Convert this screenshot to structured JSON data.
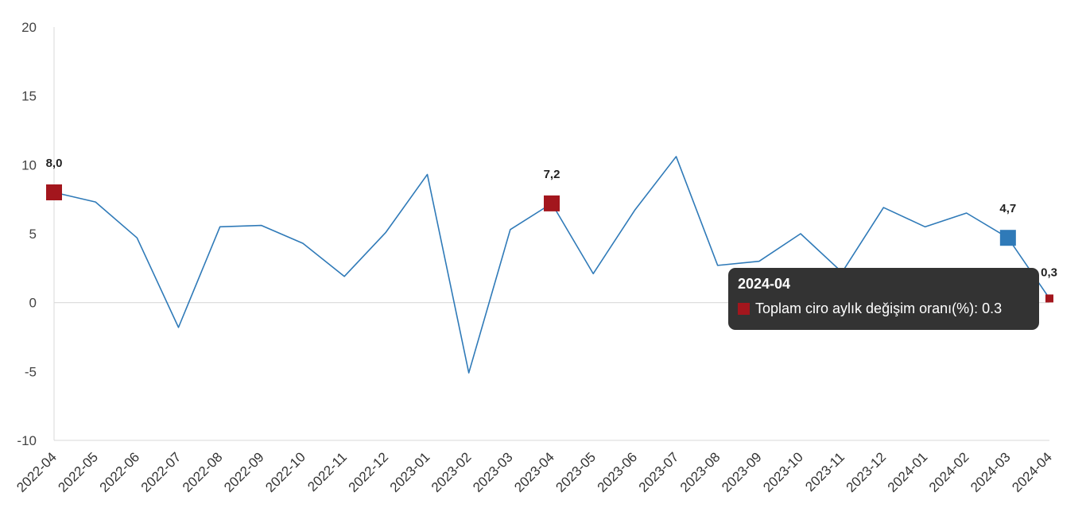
{
  "chart_data": {
    "type": "line",
    "categories": [
      "2022-04",
      "2022-05",
      "2022-06",
      "2022-07",
      "2022-08",
      "2022-09",
      "2022-10",
      "2022-11",
      "2022-12",
      "2023-01",
      "2023-02",
      "2023-03",
      "2023-04",
      "2023-05",
      "2023-06",
      "2023-07",
      "2023-08",
      "2023-09",
      "2023-10",
      "2023-11",
      "2023-12",
      "2024-01",
      "2024-02",
      "2024-03",
      "2024-04"
    ],
    "series": [
      {
        "name": "Toplam ciro aylık değişim oranı(%)",
        "color": "#2f7ab8",
        "values": [
          8.0,
          7.3,
          4.7,
          -1.8,
          5.5,
          5.6,
          4.3,
          1.9,
          5.1,
          9.3,
          -5.1,
          5.3,
          7.2,
          2.1,
          6.7,
          10.6,
          2.7,
          3.0,
          5.0,
          2.2,
          6.9,
          5.5,
          6.5,
          4.7,
          0.3
        ]
      }
    ],
    "ylim": [
      -10,
      20
    ],
    "yticks": [
      20,
      15,
      10,
      5,
      0,
      -5,
      -10
    ],
    "zero_line": true,
    "highlighted_points": [
      {
        "category": "2022-04",
        "label": "8,0",
        "color": "#a3161d"
      },
      {
        "category": "2023-04",
        "label": "7,2",
        "color": "#a3161d"
      },
      {
        "category": "2024-03",
        "label": "4,7",
        "color": "#2f7ab8"
      },
      {
        "category": "2024-04",
        "label": "0,3",
        "color": "#a3161d"
      }
    ]
  },
  "tooltip": {
    "title": "2024-04",
    "text": "Toplam ciro aylık değişim oranı(%): 0.3",
    "swatch_color": "#a3161d"
  }
}
